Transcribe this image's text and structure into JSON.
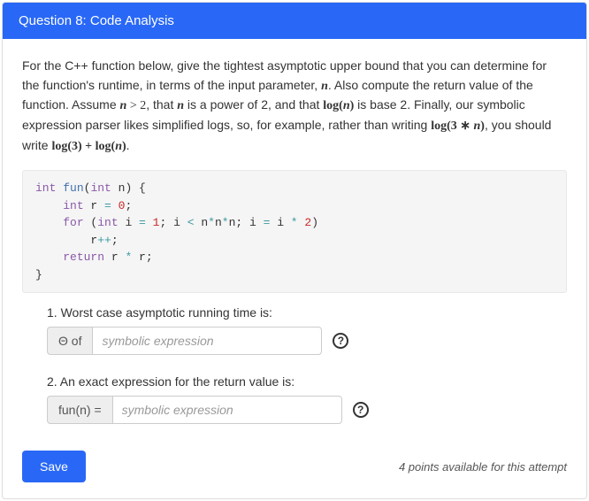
{
  "header": {
    "title": "Question 8: Code Analysis"
  },
  "prompt": {
    "html": "For the C++ function below, give the tightest asymptotic upper bound that you can determine for the function's runtime, in terms of the input parameter, <span class='math'><b><i>n</i></b></span>. Also compute the return value of the function. Assume <span class='math'><b><i>n</i></b> &gt; 2</span>, that <span class='math'><b><i>n</i></b></span> is a power of 2, and that <span class='math'><b>log(<i>n</i>)</b></span> is base 2. Finally, our symbolic expression parser likes simplified logs, so, for example, rather than writing <span class='math'><b>log(3 ∗ <i>n</i>)</b></span>, you should write <span class='math'><b>log(3) + log(<i>n</i>)</b></span>."
  },
  "code": {
    "html": "<span class='kw'>int</span> <span class='fnname'>fun</span>(<span class='kw'>int</span> n) {\n    <span class='kw'>int</span> r <span class='op'>=</span> <span class='num'>0</span>;\n    <span class='kw'>for</span> (<span class='kw'>int</span> i <span class='op'>=</span> <span class='num'>1</span>; i <span class='op'>&lt;</span> n<span class='op'>*</span>n<span class='op'>*</span>n; i <span class='op'>=</span> i <span class='op'>*</span> <span class='num'>2</span>)\n        r<span class='op'>++</span>;\n    <span class='kw'>return</span> r <span class='op'>*</span> r;\n}"
  },
  "questions": {
    "q1": {
      "label": "1. Worst case asymptotic running time is:",
      "addon": "Θ of",
      "placeholder": "symbolic expression"
    },
    "q2": {
      "label": "2. An exact expression for the return value is:",
      "addon": "fun(n) =",
      "placeholder": "symbolic expression"
    }
  },
  "footer": {
    "save": "Save",
    "points": "4 points available for this attempt"
  },
  "colors": {
    "accent": "#2968f6",
    "codebg": "#f5f5f5",
    "addonbg": "#eeeeee"
  }
}
